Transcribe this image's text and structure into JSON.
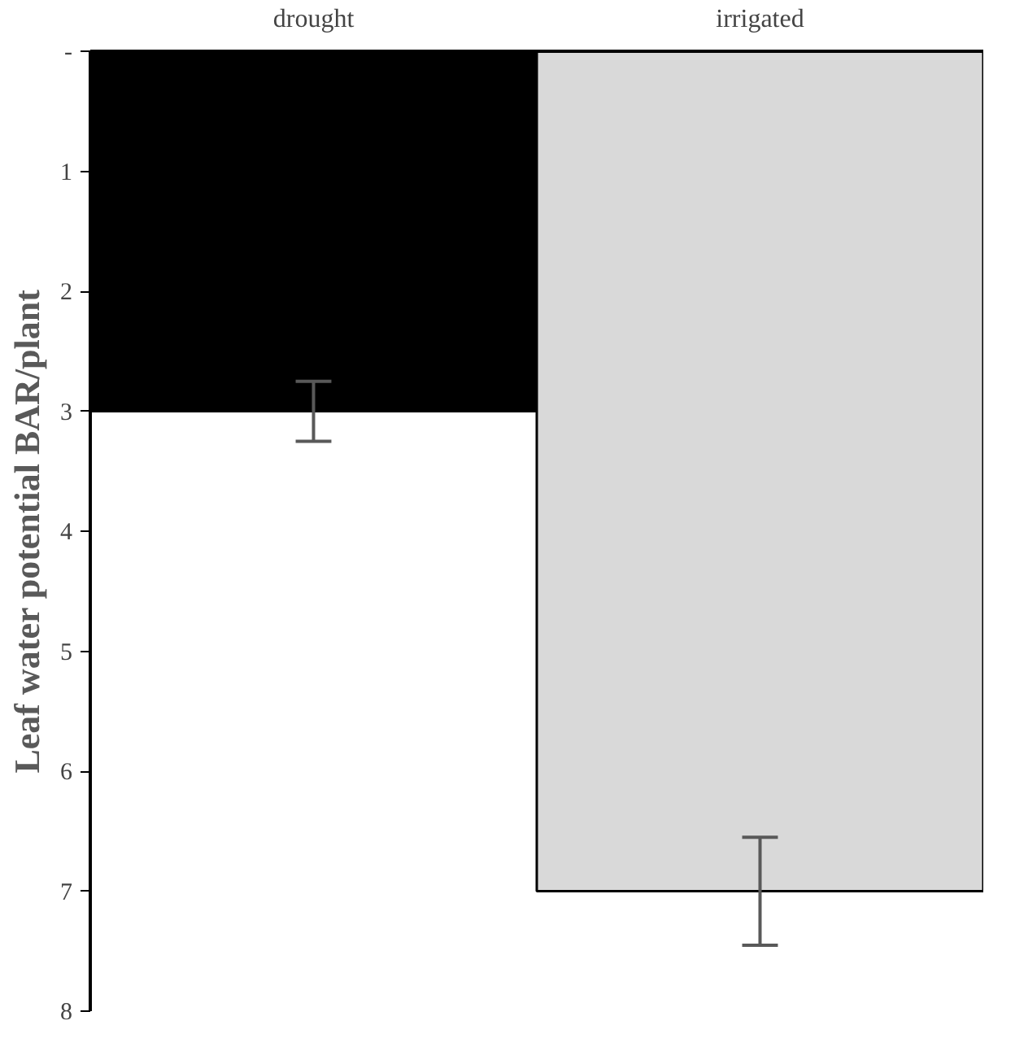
{
  "chart_data": {
    "type": "bar",
    "categories": [
      "drought",
      "irrigated"
    ],
    "values": [
      3.0,
      7.0
    ],
    "errors": [
      0.25,
      [
        6.55,
        7.45
      ]
    ],
    "colors": [
      "#000000",
      "#d9d9d9"
    ],
    "ylabel": "Leaf water potential BAR/plant",
    "ylim": [
      8,
      0
    ],
    "yticks": [
      {
        "value": 0,
        "label": "-"
      },
      1,
      2,
      3,
      4,
      5,
      6,
      7,
      8
    ]
  }
}
